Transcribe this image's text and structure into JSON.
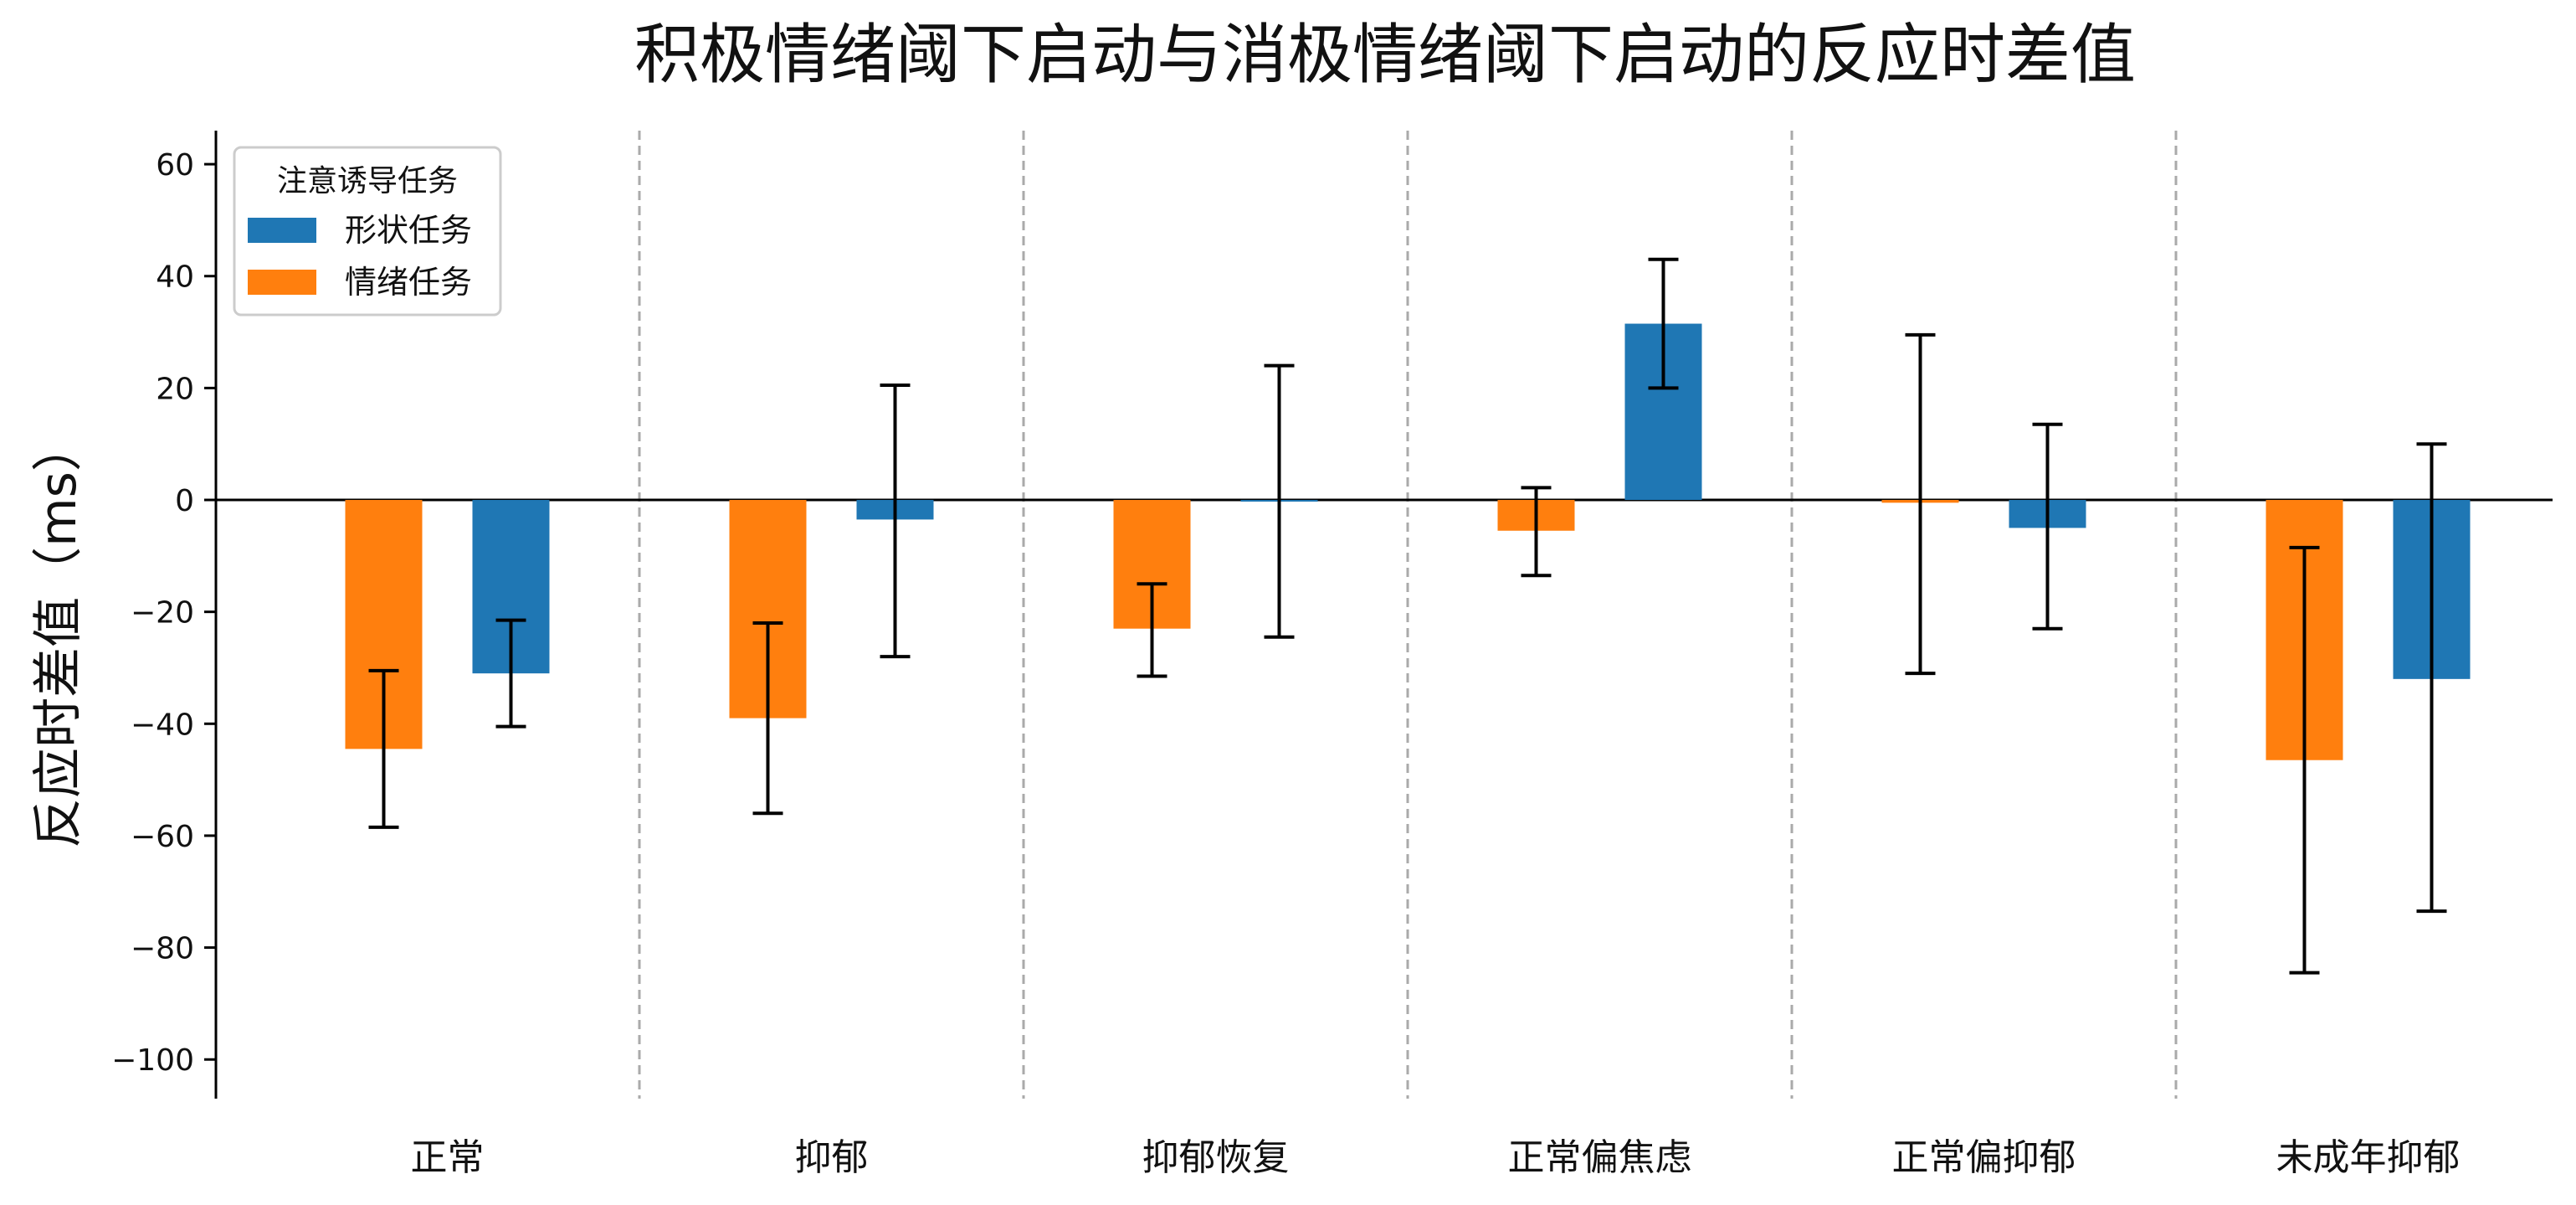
{
  "chart_data": {
    "type": "bar",
    "title": "积极情绪阈下启动与消极情绪阈下启动的反应时差值",
    "xlabel": "",
    "ylabel": "反应时差值（ms）",
    "ylim": [
      -107,
      66
    ],
    "yticks": [
      60,
      40,
      20,
      0,
      -20,
      -40,
      -60,
      -80,
      -100
    ],
    "ytick_labels": [
      "60",
      "40",
      "20",
      "0",
      "−20",
      "−40",
      "−60",
      "−80",
      "−100"
    ],
    "grid": false,
    "group_separators": "dashed gray vertical lines between groups",
    "categories": [
      "正常",
      "抑郁",
      "抑郁恢复",
      "正常偏焦虑",
      "正常偏抑郁",
      "未成年抑郁"
    ],
    "legend": {
      "title": "注意诱导任务",
      "placement": "top-left"
    },
    "series": [
      {
        "name": "情绪任务",
        "color": "#ff7f0e",
        "values": [
          -44.5,
          -39,
          -23,
          -5.5,
          -0.5,
          -46.5
        ],
        "error_low": [
          -58.5,
          -56,
          -31.5,
          -13.5,
          -31,
          -84.5
        ],
        "error_high": [
          -30.5,
          -22,
          -15,
          2.2,
          29.5,
          -8.5
        ]
      },
      {
        "name": "形状任务",
        "color": "#1f77b4",
        "values": [
          -31,
          -3.5,
          -0.3,
          31.5,
          -5,
          -32
        ],
        "error_low": [
          -40.5,
          -28,
          -24.5,
          20,
          -23,
          -73.5
        ],
        "error_high": [
          -21.5,
          20.5,
          24,
          43,
          13.5,
          10
        ]
      }
    ]
  }
}
